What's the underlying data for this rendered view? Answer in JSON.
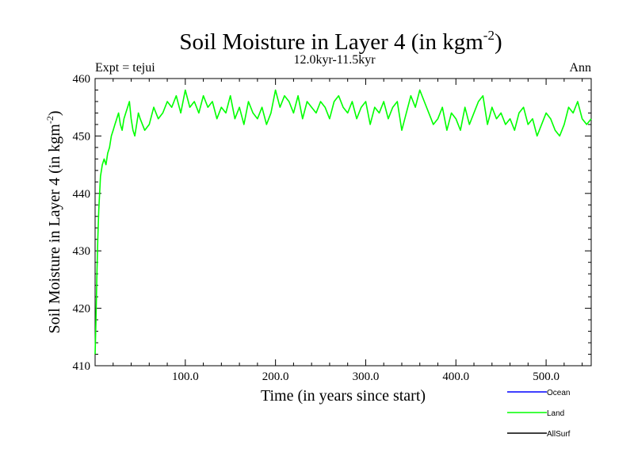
{
  "header": {
    "title_main": "Soil Moisture in Layer 4 (in kgm",
    "title_sup": "-2",
    "title_close": ")",
    "subtitle": "12.0kyr-11.5kyr",
    "left_label": "Expt = tejui",
    "right_label": "Ann"
  },
  "chart_data": {
    "type": "line",
    "title": "Soil Moisture in Layer 4 (in kgm-2)",
    "subtitle": "12.0kyr-11.5kyr",
    "xlabel": "Time (in years since start)",
    "ylabel": "Soil Moisture in Layer 4 (in kgm-2)",
    "ylabel_main": "Soil Moisture in Layer 4 (in kgm",
    "ylabel_sup": "-2",
    "ylabel_close": ")",
    "xlim": [
      0,
      550
    ],
    "ylim": [
      410,
      460
    ],
    "x_ticks": [
      100,
      200,
      300,
      400,
      500
    ],
    "x_tick_labels": [
      "100.0",
      "200.0",
      "300.0",
      "400.0",
      "500.0"
    ],
    "y_ticks": [
      410,
      420,
      430,
      440,
      450,
      460
    ],
    "y_tick_labels": [
      "410",
      "420",
      "430",
      "440",
      "450",
      "460"
    ],
    "legend": [
      {
        "name": "Ocean",
        "color": "#0000ff"
      },
      {
        "name": "Land",
        "color": "#00ff00"
      },
      {
        "name": "AllSurf",
        "color": "#000000"
      }
    ],
    "series": [
      {
        "name": "Land",
        "color": "#00ff00",
        "x": [
          0,
          1,
          2,
          3,
          4,
          5,
          6,
          7,
          8,
          10,
          12,
          14,
          16,
          18,
          20,
          22,
          24,
          26,
          28,
          30,
          32,
          34,
          36,
          38,
          40,
          42,
          44,
          46,
          48,
          50,
          55,
          60,
          65,
          70,
          75,
          80,
          85,
          90,
          95,
          100,
          105,
          110,
          115,
          120,
          125,
          130,
          135,
          140,
          145,
          150,
          155,
          160,
          165,
          170,
          175,
          180,
          185,
          190,
          195,
          200,
          205,
          210,
          215,
          220,
          225,
          230,
          235,
          240,
          245,
          250,
          255,
          260,
          265,
          270,
          275,
          280,
          285,
          290,
          295,
          300,
          305,
          310,
          315,
          320,
          325,
          330,
          335,
          340,
          345,
          350,
          355,
          360,
          365,
          370,
          375,
          380,
          385,
          390,
          395,
          400,
          405,
          410,
          415,
          420,
          425,
          430,
          435,
          440,
          445,
          450,
          455,
          460,
          465,
          470,
          475,
          480,
          485,
          490,
          495,
          500,
          505,
          510,
          515,
          520,
          525,
          530,
          535,
          540,
          545,
          550
        ],
        "values": [
          412,
          418,
          426,
          432,
          437,
          440,
          443,
          444,
          445,
          446,
          445,
          447,
          448,
          450,
          451,
          452,
          453,
          454,
          452,
          451,
          453,
          454,
          455,
          456,
          453,
          451,
          450,
          452,
          454,
          453,
          451,
          452,
          455,
          453,
          454,
          456,
          455,
          457,
          454,
          458,
          455,
          456,
          454,
          457,
          455,
          456,
          453,
          455,
          454,
          457,
          453,
          455,
          452,
          456,
          454,
          453,
          455,
          452,
          454,
          458,
          455,
          457,
          456,
          454,
          457,
          453,
          456,
          455,
          454,
          456,
          455,
          453,
          456,
          457,
          455,
          454,
          456,
          453,
          455,
          456,
          452,
          455,
          454,
          456,
          453,
          455,
          456,
          451,
          454,
          457,
          455,
          458,
          456,
          454,
          452,
          453,
          455,
          451,
          454,
          453,
          451,
          455,
          452,
          454,
          456,
          457,
          452,
          455,
          453,
          454,
          452,
          453,
          451,
          454,
          455,
          452,
          453,
          450,
          452,
          454,
          453,
          451,
          450,
          452,
          455,
          454,
          456,
          453,
          452,
          453
        ]
      },
      {
        "name": "Ocean",
        "color": "#0000ff",
        "x": [],
        "values": []
      },
      {
        "name": "AllSurf",
        "color": "#000000",
        "x": [],
        "values": []
      }
    ]
  }
}
